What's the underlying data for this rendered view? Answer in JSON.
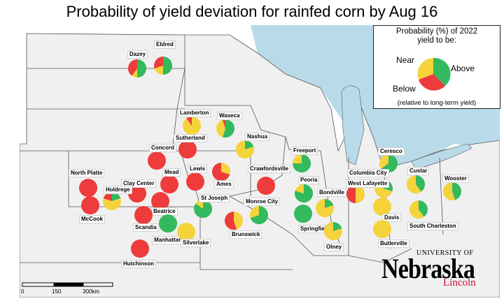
{
  "title": "Probability of yield deviation for rainfed corn by Aug 16",
  "legend": {
    "line1": "Probability (%) of 2022",
    "line2": "yield to be:",
    "near": "Near",
    "above": "Above",
    "below": "Below",
    "note": "(relative to long-term yield)"
  },
  "colors": {
    "below": "#ee3b3b",
    "near": "#f5d33a",
    "above": "#33b95e",
    "land": "#f0f0f0",
    "water": "#b9dbe9",
    "border": "#555555"
  },
  "scale": {
    "labels": [
      "0",
      "150",
      "300km"
    ]
  },
  "logo": {
    "university": "UNIVERSITY OF",
    "name": "Nebraska",
    "campus": "Lincoln"
  },
  "sites": [
    {
      "name": "Dazey",
      "below": 0.4,
      "near": 0.1,
      "above": 0.5
    },
    {
      "name": "Eldred",
      "below": 0.3,
      "near": 0.2,
      "above": 0.5
    },
    {
      "name": "Lamberton",
      "below": 0.1,
      "near": 0.9,
      "above": 0.0
    },
    {
      "name": "Waseca",
      "below": 0.05,
      "near": 0.4,
      "above": 0.55
    },
    {
      "name": "Sutherland",
      "below": 1.0,
      "near": 0.0,
      "above": 0.0
    },
    {
      "name": "Nashua",
      "below": 0.0,
      "near": 0.8,
      "above": 0.2
    },
    {
      "name": "Concord",
      "below": 1.0,
      "near": 0.0,
      "above": 0.0
    },
    {
      "name": "Freeport",
      "below": 0.0,
      "near": 0.25,
      "above": 0.75
    },
    {
      "name": "Ceresco",
      "below": 0.0,
      "near": 0.35,
      "above": 0.65
    },
    {
      "name": "North Platte",
      "below": 1.0,
      "near": 0.0,
      "above": 0.0
    },
    {
      "name": "Lewis",
      "below": 1.0,
      "near": 0.0,
      "above": 0.0
    },
    {
      "name": "Crawfordsville",
      "below": 1.0,
      "near": 0.0,
      "above": 0.0
    },
    {
      "name": "Mead",
      "below": 1.0,
      "near": 0.0,
      "above": 0.0
    },
    {
      "name": "Clay Center",
      "below": 1.0,
      "near": 0.0,
      "above": 0.0
    },
    {
      "name": "Holdrege",
      "below": 0.2,
      "near": 0.6,
      "above": 0.2
    },
    {
      "name": "Ames",
      "below": 0.7,
      "near": 0.3,
      "above": 0.0
    },
    {
      "name": "Columbia City",
      "below": 0.0,
      "near": 0.7,
      "above": 0.3
    },
    {
      "name": "Custar",
      "below": 0.0,
      "near": 0.6,
      "above": 0.4
    },
    {
      "name": "Wooster",
      "below": 0.0,
      "near": 0.55,
      "above": 0.45
    },
    {
      "name": "Peoria",
      "below": 0.0,
      "near": 0.2,
      "above": 0.8
    },
    {
      "name": "West Lafayette",
      "below": 0.5,
      "near": 0.5,
      "above": 0.0
    },
    {
      "name": "Bondville",
      "below": 0.0,
      "near": 0.8,
      "above": 0.2
    },
    {
      "name": "St Joseph",
      "below": 0.0,
      "near": 0.15,
      "above": 0.85
    },
    {
      "name": "Monroe City",
      "below": 0.0,
      "near": 0.3,
      "above": 0.7
    },
    {
      "name": "McCook",
      "below": 1.0,
      "near": 0.0,
      "above": 0.0
    },
    {
      "name": "Beatrice",
      "below": 1.0,
      "near": 0.0,
      "above": 0.0
    },
    {
      "name": "Scandia",
      "below": 1.0,
      "near": 0.0,
      "above": 0.0
    },
    {
      "name": "Manhattan",
      "below": 0.0,
      "near": 0.0,
      "above": 1.0
    },
    {
      "name": "Silverlake",
      "below": 0.0,
      "near": 1.0,
      "above": 0.0
    },
    {
      "name": "Brunswick",
      "below": 0.55,
      "near": 0.45,
      "above": 0.0
    },
    {
      "name": "Springfield",
      "below": 0.0,
      "near": 0.0,
      "above": 1.0
    },
    {
      "name": "Davis",
      "below": 0.0,
      "near": 1.0,
      "above": 0.0
    },
    {
      "name": "South Charleston",
      "below": 0.0,
      "near": 0.6,
      "above": 0.4
    },
    {
      "name": "Butlerville",
      "below": 0.0,
      "near": 1.0,
      "above": 0.0
    },
    {
      "name": "Olney",
      "below": 0.0,
      "near": 0.8,
      "above": 0.2
    },
    {
      "name": "Hutchinson",
      "below": 1.0,
      "near": 0.0,
      "above": 0.0
    }
  ]
}
